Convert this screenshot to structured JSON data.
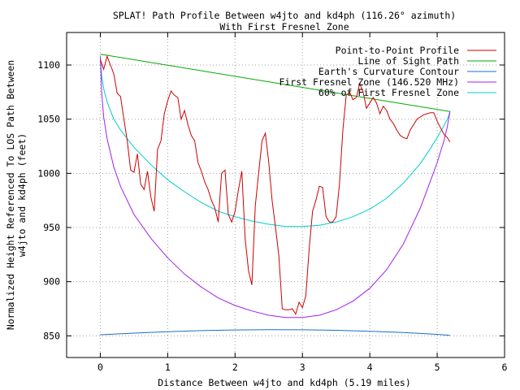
{
  "chart_data": {
    "type": "line",
    "title": "SPLAT! Path Profile Between w4jto and kd4ph (116.26° azimuth)",
    "subtitle": "With First Fresnel Zone",
    "xlabel": "Distance Between w4jto and kd4ph (5.19 miles)",
    "ylabel_line1": "Normalized Height Referenced To LOS Path Between",
    "ylabel_line2": "w4jto and kd4ph (feet)",
    "xlim": [
      -0.5,
      6
    ],
    "ylim": [
      830,
      1130
    ],
    "xticks": [
      0,
      1,
      2,
      3,
      4,
      5,
      6
    ],
    "yticks": [
      850,
      900,
      950,
      1000,
      1050,
      1100
    ],
    "grid": true,
    "legend_position": "top-right",
    "series": [
      {
        "name": "Point-to-Point Profile",
        "color": "#cc0000",
        "x": [
          0,
          0.05,
          0.1,
          0.15,
          0.2,
          0.25,
          0.3,
          0.35,
          0.4,
          0.45,
          0.5,
          0.55,
          0.6,
          0.65,
          0.7,
          0.75,
          0.8,
          0.85,
          0.9,
          0.95,
          1.0,
          1.05,
          1.1,
          1.15,
          1.2,
          1.25,
          1.3,
          1.35,
          1.4,
          1.45,
          1.5,
          1.55,
          1.6,
          1.65,
          1.7,
          1.75,
          1.8,
          1.85,
          1.9,
          1.95,
          2.0,
          2.05,
          2.1,
          2.15,
          2.2,
          2.25,
          2.3,
          2.35,
          2.4,
          2.45,
          2.5,
          2.55,
          2.6,
          2.65,
          2.7,
          2.75,
          2.8,
          2.85,
          2.9,
          2.95,
          3.0,
          3.05,
          3.1,
          3.15,
          3.2,
          3.25,
          3.3,
          3.35,
          3.4,
          3.45,
          3.5,
          3.55,
          3.6,
          3.65,
          3.7,
          3.75,
          3.8,
          3.85,
          3.9,
          3.95,
          4.0,
          4.05,
          4.1,
          4.15,
          4.2,
          4.25,
          4.3,
          4.35,
          4.4,
          4.45,
          4.5,
          4.55,
          4.6,
          4.65,
          4.7,
          4.75,
          4.8,
          4.85,
          4.9,
          4.95,
          5.0,
          5.05,
          5.1,
          5.15,
          5.19
        ],
        "y": [
          1105,
          1096,
          1108,
          1100,
          1092,
          1074,
          1071,
          1050,
          1030,
          1003,
          1001,
          1018,
          990,
          985,
          1002,
          978,
          965,
          1022,
          1030,
          1055,
          1067,
          1076,
          1072,
          1070,
          1050,
          1058,
          1045,
          1035,
          1030,
          1010,
          1002,
          992,
          985,
          975,
          968,
          955,
          1000,
          1003,
          962,
          955,
          965,
          985,
          1002,
          940,
          910,
          897,
          970,
          1000,
          1030,
          1037,
          1010,
          975,
          950,
          924,
          875,
          874,
          874,
          875,
          870,
          881,
          876,
          887,
          930,
          965,
          975,
          988,
          987,
          960,
          955,
          955,
          960,
          990,
          1040,
          1072,
          1075,
          1068,
          1070,
          1083,
          1075,
          1060,
          1065,
          1070,
          1065,
          1055,
          1062,
          1058,
          1050,
          1046,
          1040,
          1035,
          1033,
          1032,
          1040,
          1045,
          1050,
          1052,
          1054,
          1055,
          1056,
          1056,
          1048,
          1042,
          1036,
          1033,
          1029
        ]
      },
      {
        "name": "Line of Sight Path",
        "color": "#00aa00",
        "x": [
          0,
          5.19
        ],
        "y": [
          1110,
          1057
        ]
      },
      {
        "name": "Earth's Curvature Contour",
        "color": "#1a6ec8",
        "x": [
          0,
          0.5,
          1.0,
          1.5,
          2.0,
          2.5,
          3.0,
          3.5,
          4.0,
          4.5,
          5.0,
          5.19
        ],
        "y": [
          851,
          852.5,
          853.8,
          854.8,
          855.4,
          855.7,
          855.6,
          855.1,
          854.2,
          853,
          851.4,
          850.5
        ]
      },
      {
        "name": "First Fresnel Zone (146.520 MHz)",
        "color": "#a020f0",
        "x": [
          0,
          0.02,
          0.05,
          0.1,
          0.2,
          0.3,
          0.5,
          0.75,
          1.0,
          1.25,
          1.5,
          1.75,
          2.0,
          2.25,
          2.5,
          2.75,
          3.0,
          3.25,
          3.5,
          3.75,
          4.0,
          4.25,
          4.5,
          4.75,
          4.9,
          5.0,
          5.1,
          5.15,
          5.17,
          5.19
        ],
        "y": [
          1108,
          1075,
          1052,
          1032,
          1006,
          988,
          962,
          940,
          922,
          907,
          895,
          885,
          878,
          873,
          869,
          867,
          867,
          869,
          874,
          882,
          894,
          911,
          935,
          968,
          993,
          1010,
          1030,
          1043,
          1050,
          1057
        ]
      },
      {
        "name": "60% of First Fresnel Zone",
        "color": "#00cccc",
        "x": [
          0,
          0.02,
          0.05,
          0.1,
          0.2,
          0.3,
          0.5,
          0.75,
          1.0,
          1.25,
          1.5,
          1.75,
          2.0,
          2.25,
          2.5,
          2.75,
          3.0,
          3.25,
          3.5,
          3.75,
          4.0,
          4.25,
          4.5,
          4.75,
          4.9,
          5.0,
          5.1,
          5.15,
          5.17,
          5.19
        ],
        "y": [
          1108,
          1090,
          1078,
          1066,
          1050,
          1040,
          1024,
          1008,
          994,
          983,
          973,
          965,
          960,
          956,
          953,
          951,
          951,
          952,
          955,
          960,
          967,
          977,
          991,
          1009,
          1023,
          1033,
          1044,
          1050,
          1053,
          1057
        ]
      }
    ]
  }
}
